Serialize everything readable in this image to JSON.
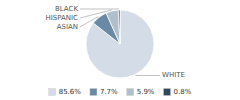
{
  "chart_data": {
    "type": "pie",
    "categories": [
      "WHITE",
      "ASIAN",
      "HISPANIC",
      "BLACK"
    ],
    "values": [
      85.6,
      7.7,
      5.9,
      0.8
    ],
    "value_labels": [
      "85.6%",
      "7.7%",
      "5.9%",
      "0.8%"
    ],
    "colors": [
      "#d4dce8",
      "#6989a4",
      "#b0bfcc",
      "#2d4a60"
    ],
    "legend": "bottom"
  }
}
